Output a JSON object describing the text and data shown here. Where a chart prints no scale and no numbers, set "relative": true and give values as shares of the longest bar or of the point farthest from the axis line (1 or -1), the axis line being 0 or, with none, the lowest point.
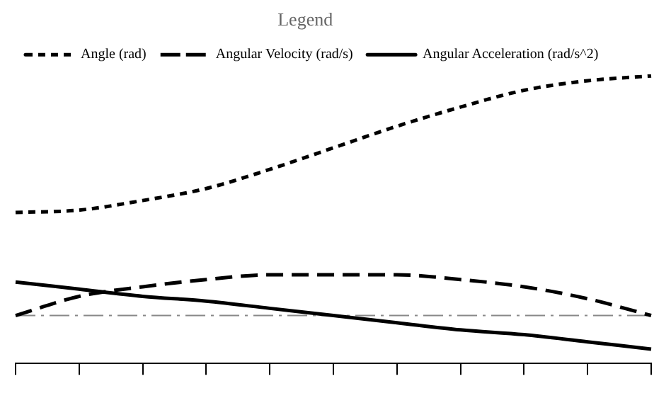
{
  "chart_data": {
    "type": "line",
    "relative": true,
    "legend_title": "Legend",
    "legend": "top left",
    "grid": false,
    "marker": "none",
    "categories": [
      null,
      null,
      null,
      null,
      null,
      null,
      null,
      null,
      null,
      null,
      null
    ],
    "series": [
      {
        "name": "Angle (rad)",
        "color": "#000000",
        "line_style": "dotted",
        "values": [
          0.43,
          0.44,
          0.48,
          0.53,
          0.61,
          0.7,
          0.79,
          0.87,
          0.94,
          0.98,
          1
        ]
      },
      {
        "name": "Angular Velocity (rad/s)",
        "color": "#000000",
        "line_style": "dashed",
        "values": [
          0,
          0.08,
          0.12,
          0.15,
          0.17,
          0.17,
          0.17,
          0.15,
          0.12,
          0.07,
          0
        ]
      },
      {
        "name": "Angular Acceleration (rad/s^2)",
        "color": "#000000",
        "line_style": "solid",
        "values": [
          0.14,
          0.11,
          0.08,
          0.06,
          0.03,
          0,
          -0.03,
          -0.06,
          -0.08,
          -0.11,
          -0.14
        ]
      }
    ],
    "ref_lines": [
      {
        "axis": "y",
        "value": 0,
        "color": "#888888"
      }
    ]
  }
}
